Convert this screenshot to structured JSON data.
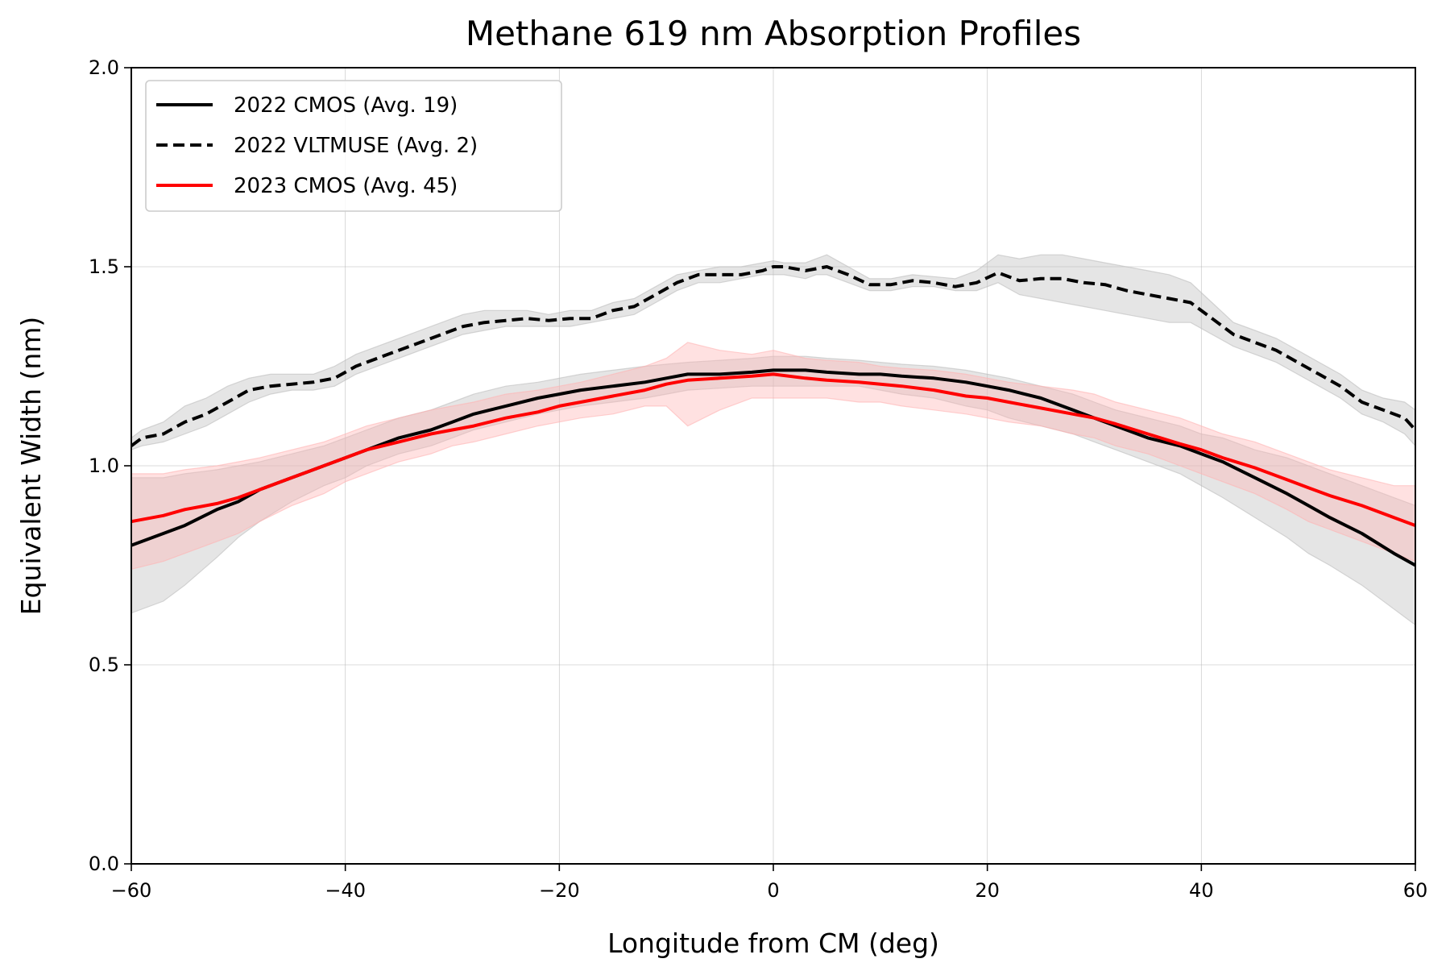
{
  "chart_data": {
    "type": "line",
    "title": "Methane 619 nm Absorption Profiles",
    "xlabel": "Longitude from CM (deg)",
    "ylabel": "Equivalent Width (nm)",
    "xlim": [
      -60,
      60
    ],
    "ylim": [
      0.0,
      2.0
    ],
    "xticks": [
      "−60",
      "−40",
      "−20",
      "0",
      "20",
      "40",
      "60"
    ],
    "xtick_values": [
      -60,
      -40,
      -20,
      0,
      20,
      40,
      60
    ],
    "yticks": [
      "0.0",
      "0.5",
      "1.0",
      "1.5",
      "2.0"
    ],
    "ytick_values": [
      0.0,
      0.5,
      1.0,
      1.5,
      2.0
    ],
    "grid": true,
    "legend_position": "top-left",
    "series": [
      {
        "name": "2022 CMOS (Avg. 19)",
        "color": "#000000",
        "dash": "solid",
        "band_color": "#bdbdbd",
        "x": [
          -60,
          -57,
          -55,
          -52,
          -50,
          -48,
          -45,
          -42,
          -40,
          -38,
          -35,
          -32,
          -30,
          -28,
          -25,
          -22,
          -20,
          -18,
          -15,
          -12,
          -10,
          -8,
          -5,
          -2,
          0,
          3,
          5,
          8,
          10,
          12,
          15,
          18,
          20,
          22,
          25,
          28,
          30,
          32,
          35,
          38,
          40,
          42,
          45,
          48,
          50,
          52,
          55,
          58,
          60
        ],
        "y": [
          0.8,
          0.83,
          0.85,
          0.89,
          0.91,
          0.94,
          0.97,
          1.0,
          1.02,
          1.04,
          1.07,
          1.09,
          1.11,
          1.13,
          1.15,
          1.17,
          1.18,
          1.19,
          1.2,
          1.21,
          1.22,
          1.23,
          1.23,
          1.235,
          1.24,
          1.24,
          1.235,
          1.23,
          1.23,
          1.225,
          1.22,
          1.21,
          1.2,
          1.19,
          1.17,
          1.14,
          1.12,
          1.1,
          1.07,
          1.05,
          1.03,
          1.01,
          0.97,
          0.93,
          0.9,
          0.87,
          0.83,
          0.78,
          0.75
        ],
        "lower": [
          0.63,
          0.66,
          0.7,
          0.77,
          0.82,
          0.86,
          0.91,
          0.95,
          0.97,
          1.0,
          1.03,
          1.05,
          1.07,
          1.09,
          1.11,
          1.13,
          1.14,
          1.15,
          1.16,
          1.17,
          1.18,
          1.19,
          1.195,
          1.2,
          1.2,
          1.2,
          1.2,
          1.2,
          1.19,
          1.18,
          1.17,
          1.15,
          1.14,
          1.12,
          1.1,
          1.08,
          1.06,
          1.04,
          1.01,
          0.98,
          0.95,
          0.92,
          0.87,
          0.82,
          0.78,
          0.75,
          0.7,
          0.64,
          0.6
        ],
        "upper": [
          0.97,
          0.97,
          0.98,
          0.99,
          1.0,
          1.01,
          1.03,
          1.05,
          1.07,
          1.09,
          1.12,
          1.14,
          1.16,
          1.18,
          1.2,
          1.21,
          1.22,
          1.23,
          1.24,
          1.25,
          1.255,
          1.26,
          1.265,
          1.27,
          1.275,
          1.275,
          1.27,
          1.265,
          1.26,
          1.255,
          1.25,
          1.24,
          1.23,
          1.22,
          1.2,
          1.18,
          1.16,
          1.14,
          1.12,
          1.1,
          1.08,
          1.07,
          1.04,
          1.02,
          1.0,
          0.98,
          0.95,
          0.92,
          0.9
        ]
      },
      {
        "name": "2022 VLTMUSE (Avg. 2)",
        "color": "#000000",
        "dash": "dashed",
        "band_color": "#bdbdbd",
        "x": [
          -60,
          -59,
          -57,
          -55,
          -53,
          -51,
          -49,
          -47,
          -45,
          -43,
          -41,
          -39,
          -37,
          -35,
          -33,
          -31,
          -29,
          -27,
          -25,
          -23,
          -21,
          -19,
          -17,
          -15,
          -13,
          -11,
          -9,
          -7,
          -5,
          -3,
          -1,
          0,
          1,
          3,
          4,
          5,
          7,
          9,
          11,
          13,
          15,
          17,
          19,
          21,
          23,
          25,
          27,
          29,
          31,
          33,
          35,
          37,
          39,
          41,
          43,
          45,
          47,
          49,
          51,
          53,
          55,
          57,
          59,
          60
        ],
        "y": [
          1.05,
          1.07,
          1.08,
          1.11,
          1.13,
          1.16,
          1.19,
          1.2,
          1.205,
          1.21,
          1.22,
          1.25,
          1.27,
          1.29,
          1.31,
          1.33,
          1.35,
          1.36,
          1.365,
          1.37,
          1.365,
          1.37,
          1.37,
          1.39,
          1.4,
          1.43,
          1.46,
          1.48,
          1.48,
          1.48,
          1.49,
          1.5,
          1.5,
          1.49,
          1.495,
          1.5,
          1.48,
          1.455,
          1.455,
          1.465,
          1.46,
          1.45,
          1.46,
          1.485,
          1.465,
          1.47,
          1.47,
          1.46,
          1.455,
          1.44,
          1.43,
          1.42,
          1.41,
          1.37,
          1.33,
          1.31,
          1.29,
          1.26,
          1.23,
          1.2,
          1.16,
          1.14,
          1.12,
          1.09
        ],
        "lower": [
          1.04,
          1.05,
          1.06,
          1.08,
          1.1,
          1.13,
          1.16,
          1.18,
          1.19,
          1.19,
          1.2,
          1.23,
          1.25,
          1.27,
          1.29,
          1.31,
          1.33,
          1.34,
          1.35,
          1.35,
          1.35,
          1.35,
          1.36,
          1.37,
          1.38,
          1.41,
          1.44,
          1.46,
          1.46,
          1.47,
          1.48,
          1.48,
          1.48,
          1.47,
          1.48,
          1.48,
          1.46,
          1.44,
          1.44,
          1.45,
          1.45,
          1.44,
          1.44,
          1.46,
          1.43,
          1.42,
          1.41,
          1.4,
          1.39,
          1.38,
          1.37,
          1.36,
          1.36,
          1.33,
          1.3,
          1.28,
          1.26,
          1.23,
          1.2,
          1.17,
          1.13,
          1.11,
          1.08,
          1.05
        ],
        "upper": [
          1.07,
          1.09,
          1.11,
          1.15,
          1.17,
          1.2,
          1.22,
          1.23,
          1.23,
          1.23,
          1.25,
          1.28,
          1.3,
          1.32,
          1.34,
          1.36,
          1.38,
          1.39,
          1.39,
          1.39,
          1.38,
          1.39,
          1.39,
          1.41,
          1.42,
          1.45,
          1.48,
          1.49,
          1.5,
          1.5,
          1.51,
          1.515,
          1.51,
          1.51,
          1.52,
          1.53,
          1.5,
          1.47,
          1.47,
          1.48,
          1.475,
          1.47,
          1.49,
          1.53,
          1.52,
          1.53,
          1.53,
          1.52,
          1.51,
          1.5,
          1.49,
          1.48,
          1.46,
          1.41,
          1.36,
          1.34,
          1.32,
          1.29,
          1.26,
          1.23,
          1.19,
          1.17,
          1.16,
          1.14
        ]
      },
      {
        "name": "2023 CMOS (Avg. 45)",
        "color": "#ff0000",
        "dash": "solid",
        "band_color": "#ffb3b3",
        "x": [
          -60,
          -57,
          -55,
          -52,
          -50,
          -48,
          -45,
          -42,
          -40,
          -38,
          -35,
          -32,
          -30,
          -28,
          -25,
          -22,
          -20,
          -18,
          -15,
          -12,
          -10,
          -8,
          -5,
          -2,
          0,
          3,
          5,
          8,
          10,
          12,
          15,
          18,
          20,
          22,
          25,
          28,
          30,
          32,
          35,
          38,
          40,
          42,
          45,
          48,
          50,
          52,
          55,
          58,
          60
        ],
        "y": [
          0.86,
          0.875,
          0.89,
          0.905,
          0.92,
          0.94,
          0.97,
          1.0,
          1.02,
          1.04,
          1.06,
          1.08,
          1.09,
          1.1,
          1.12,
          1.135,
          1.15,
          1.16,
          1.175,
          1.19,
          1.205,
          1.215,
          1.22,
          1.225,
          1.23,
          1.22,
          1.215,
          1.21,
          1.205,
          1.2,
          1.19,
          1.175,
          1.17,
          1.16,
          1.145,
          1.13,
          1.12,
          1.105,
          1.08,
          1.055,
          1.04,
          1.02,
          0.995,
          0.965,
          0.945,
          0.925,
          0.9,
          0.87,
          0.85
        ],
        "lower": [
          0.74,
          0.76,
          0.78,
          0.81,
          0.83,
          0.86,
          0.9,
          0.93,
          0.96,
          0.98,
          1.01,
          1.03,
          1.05,
          1.06,
          1.08,
          1.1,
          1.11,
          1.12,
          1.13,
          1.15,
          1.15,
          1.1,
          1.14,
          1.17,
          1.17,
          1.17,
          1.17,
          1.16,
          1.16,
          1.15,
          1.14,
          1.13,
          1.12,
          1.11,
          1.1,
          1.08,
          1.07,
          1.05,
          1.03,
          1.0,
          0.98,
          0.96,
          0.93,
          0.89,
          0.86,
          0.84,
          0.81,
          0.78,
          0.76
        ],
        "upper": [
          0.98,
          0.98,
          0.99,
          1.0,
          1.01,
          1.02,
          1.04,
          1.06,
          1.08,
          1.1,
          1.12,
          1.14,
          1.15,
          1.16,
          1.18,
          1.19,
          1.2,
          1.21,
          1.23,
          1.25,
          1.27,
          1.31,
          1.29,
          1.28,
          1.29,
          1.27,
          1.265,
          1.26,
          1.25,
          1.245,
          1.24,
          1.23,
          1.22,
          1.21,
          1.2,
          1.19,
          1.18,
          1.16,
          1.14,
          1.12,
          1.1,
          1.08,
          1.06,
          1.03,
          1.01,
          0.99,
          0.97,
          0.95,
          0.95
        ]
      }
    ]
  }
}
